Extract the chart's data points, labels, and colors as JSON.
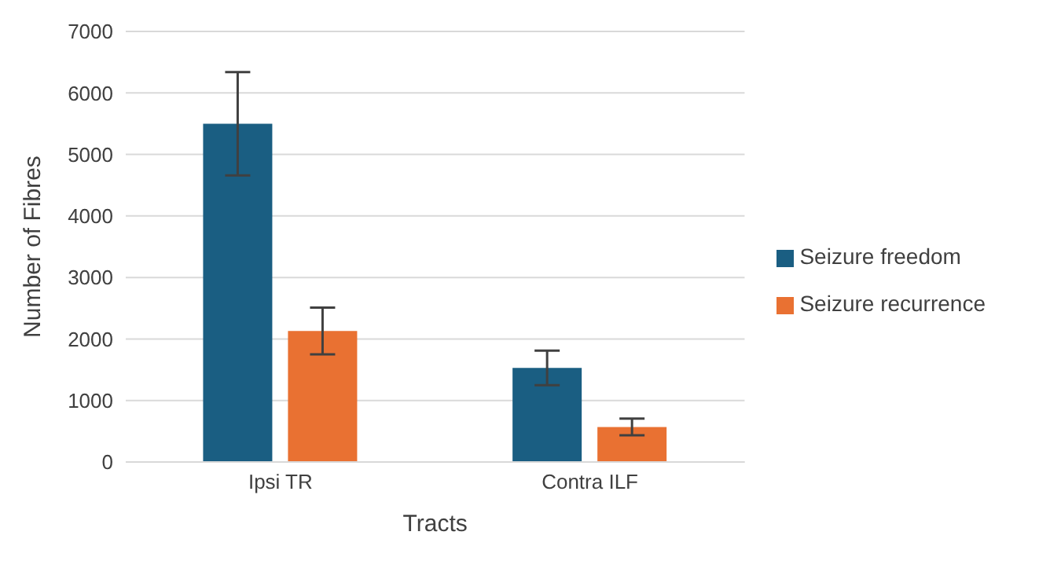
{
  "chart_data": {
    "type": "bar",
    "xlabel": "Tracts",
    "ylabel": "Number of Fibres",
    "categories": [
      "Ipsi TR",
      "Contra ILF"
    ],
    "series": [
      {
        "name": "Seizure freedom",
        "color": "#1a5e82",
        "values": [
          5500,
          1530
        ],
        "errors": [
          840,
          280
        ]
      },
      {
        "name": "Seizure recurrence",
        "color": "#e97132",
        "values": [
          2130,
          570
        ],
        "errors": [
          380,
          135
        ]
      }
    ],
    "ylim": [
      0,
      7000
    ],
    "yticks": [
      0,
      1000,
      2000,
      3000,
      4000,
      5000,
      6000,
      7000
    ],
    "grid": "y",
    "legend": "right"
  }
}
